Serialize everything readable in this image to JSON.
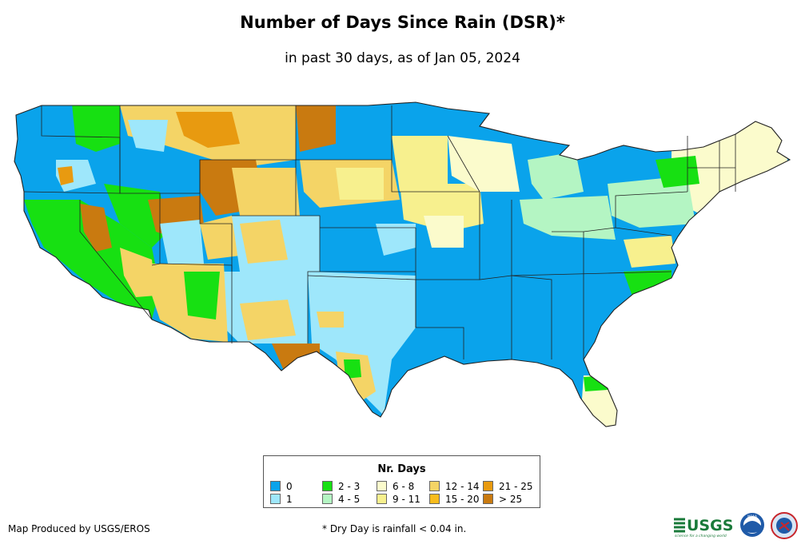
{
  "header": {
    "title": "Number of Days Since Rain (DSR)*",
    "subtitle": "in past 30 days, as of Jan 05, 2024"
  },
  "legend": {
    "title": "Nr. Days",
    "items": [
      {
        "label": "0",
        "color": "#0aa3eb"
      },
      {
        "label": "1",
        "color": "#9ee7fb"
      },
      {
        "label": "2 - 3",
        "color": "#17e012"
      },
      {
        "label": "4 - 5",
        "color": "#b4f5c3"
      },
      {
        "label": "6 - 8",
        "color": "#fbfbcc"
      },
      {
        "label": "9 - 11",
        "color": "#f7f08e"
      },
      {
        "label": "12 - 14",
        "color": "#f4d466"
      },
      {
        "label": "15 - 20",
        "color": "#f8bc1c"
      },
      {
        "label": "21 - 25",
        "color": "#e89a10"
      },
      {
        "label": "> 25",
        "color": "#c97a10"
      }
    ]
  },
  "footer": {
    "credit": "Map Produced by USGS/EROS",
    "note": "* Dry Day is rainfall < 0.04 in."
  },
  "logos": {
    "usgs_text": "USGS",
    "usgs_tagline": "science for a changing world",
    "noaa_text": "NOAA"
  }
}
